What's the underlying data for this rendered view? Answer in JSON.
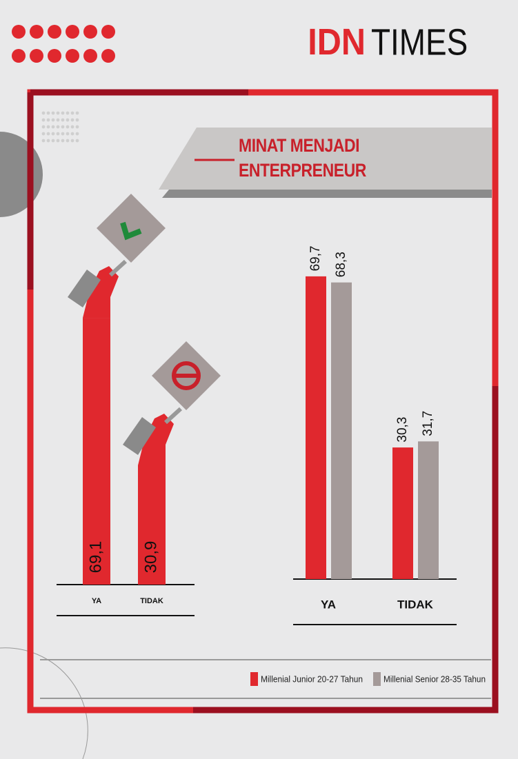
{
  "brand": {
    "left": "IDN",
    "right": "TIMES"
  },
  "title": "MINAT MENJADI ENTERPRENEUR",
  "chart_data": [
    {
      "type": "bar",
      "categories": [
        "YA",
        "TIDAK"
      ],
      "values": [
        69.1,
        30.9
      ],
      "value_labels": [
        "69,1",
        "30,9"
      ],
      "color": "#e0282e"
    },
    {
      "type": "grouped-bar",
      "categories": [
        "YA",
        "TIDAK"
      ],
      "series": [
        {
          "name": "Millenial Junior 20-27 Tahun",
          "color": "#e0282e",
          "values": [
            69.7,
            30.3
          ],
          "value_labels": [
            "69,7",
            "30,3"
          ]
        },
        {
          "name": "Millenial Senior 28-35 Tahun",
          "color": "#a49a99",
          "values": [
            68.3,
            31.7
          ],
          "value_labels": [
            "68,3",
            "31,7"
          ]
        }
      ]
    }
  ]
}
